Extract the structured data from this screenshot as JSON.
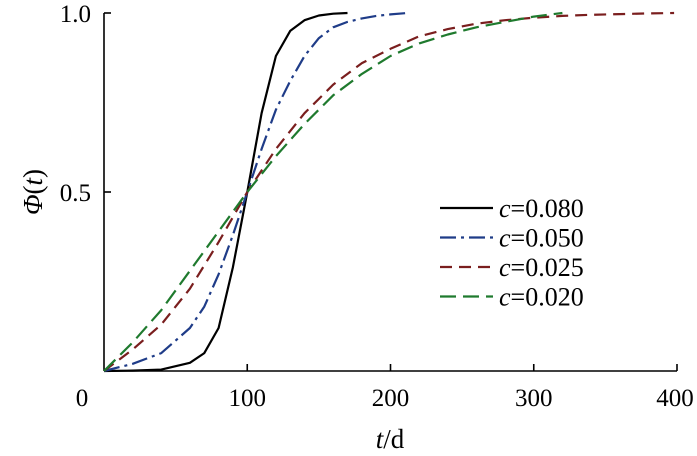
{
  "chart_data": {
    "type": "line",
    "xlabel": {
      "var": "t",
      "unit": "/d"
    },
    "ylabel": {
      "fn": "Φ",
      "open": "(",
      "var": "t",
      "close": ")"
    },
    "xlim": [
      0,
      400
    ],
    "ylim": [
      0,
      1.0
    ],
    "xticks": [
      0,
      100,
      200,
      300,
      400
    ],
    "xtick_labels": [
      "0",
      "100",
      "200",
      "300",
      "400"
    ],
    "yticks": [
      0.5,
      1.0
    ],
    "ytick_labels": [
      "0.5",
      "1.0"
    ],
    "grid": false,
    "legend_position": "center-right",
    "series": [
      {
        "name": "c=0.080",
        "var": "c",
        "value_text": "=0.080",
        "color": "#000000",
        "dash": "solid",
        "x": [
          0,
          20,
          40,
          60,
          70,
          80,
          90,
          100,
          110,
          120,
          130,
          140,
          150,
          160,
          170
        ],
        "y": [
          0,
          0.001,
          0.004,
          0.023,
          0.05,
          0.12,
          0.29,
          0.5,
          0.72,
          0.88,
          0.95,
          0.98,
          0.993,
          0.998,
          1.0
        ]
      },
      {
        "name": "c=0.050",
        "var": "c",
        "value_text": "=0.050",
        "color": "#1f3c88",
        "dash": "dashdot",
        "x": [
          0,
          20,
          40,
          60,
          70,
          80,
          90,
          100,
          110,
          120,
          130,
          140,
          150,
          160,
          170,
          180,
          190,
          200,
          212
        ],
        "y": [
          0,
          0.02,
          0.05,
          0.12,
          0.18,
          0.27,
          0.38,
          0.5,
          0.62,
          0.73,
          0.81,
          0.88,
          0.93,
          0.96,
          0.975,
          0.985,
          0.992,
          0.996,
          1.0
        ]
      },
      {
        "name": "c=0.025",
        "var": "c",
        "value_text": "=0.025",
        "color": "#7a1e1e",
        "dash": "dashed",
        "x": [
          0,
          20,
          40,
          60,
          80,
          100,
          120,
          140,
          160,
          180,
          200,
          220,
          240,
          260,
          280,
          300,
          320,
          340,
          360,
          380,
          398
        ],
        "y": [
          0,
          0.06,
          0.13,
          0.23,
          0.36,
          0.5,
          0.62,
          0.72,
          0.8,
          0.86,
          0.9,
          0.935,
          0.955,
          0.97,
          0.98,
          0.987,
          0.992,
          0.995,
          0.997,
          0.999,
          1.0
        ]
      },
      {
        "name": "c=0.020",
        "var": "c",
        "value_text": "=0.020",
        "color": "#1f7a2e",
        "dash": "longdash",
        "x": [
          0,
          20,
          40,
          60,
          80,
          100,
          120,
          140,
          160,
          180,
          200,
          220,
          240,
          260,
          280,
          300,
          320
        ],
        "y": [
          0,
          0.08,
          0.17,
          0.28,
          0.39,
          0.5,
          0.6,
          0.69,
          0.77,
          0.83,
          0.88,
          0.915,
          0.94,
          0.96,
          0.975,
          0.99,
          1.0
        ]
      }
    ]
  }
}
